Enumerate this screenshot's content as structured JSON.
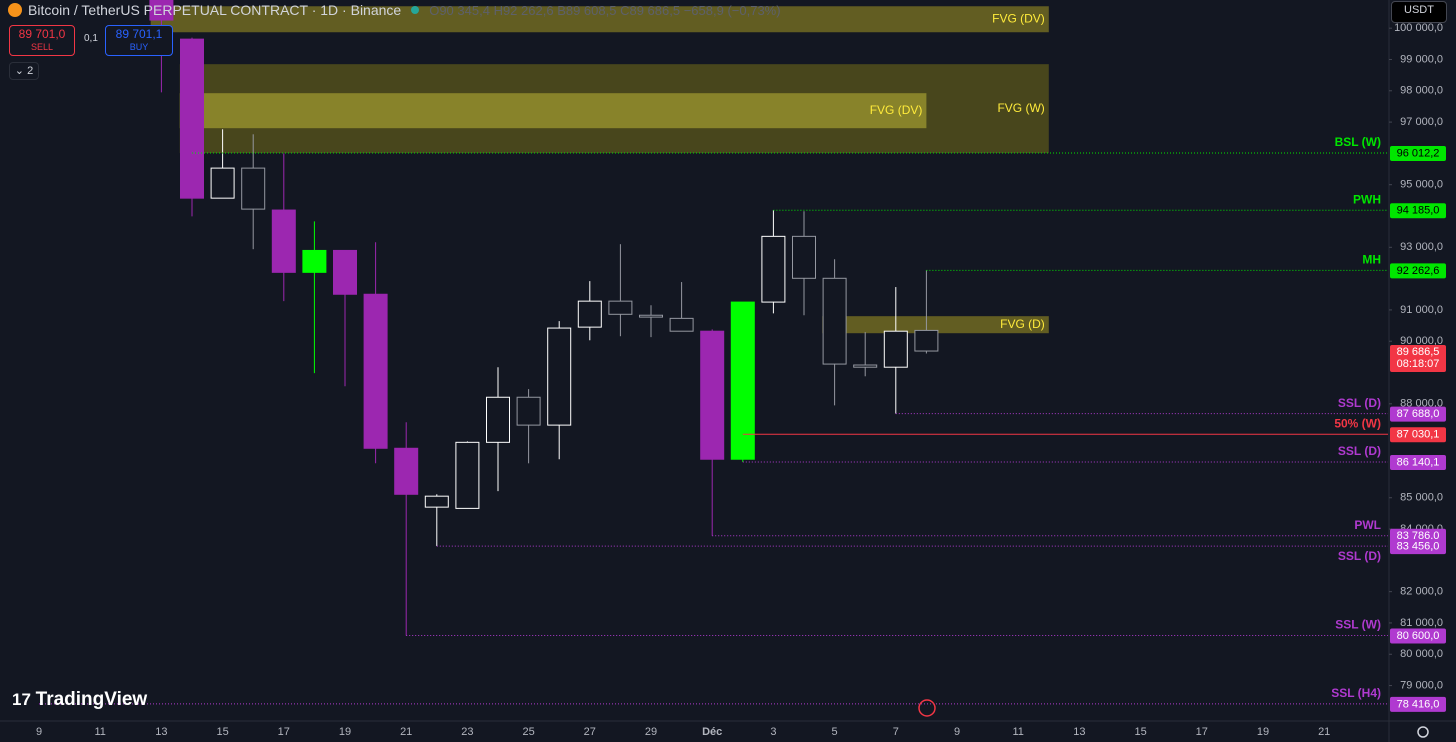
{
  "header": {
    "symbol": "Bitcoin / TetherUS PERPETUAL CONTRACT · 1D · Binance",
    "ohlc": [
      {
        "key": "O",
        "value": "90 345,4"
      },
      {
        "key": "H",
        "value": "92 262,6"
      },
      {
        "key": "B",
        "value": "89 608,5"
      },
      {
        "key": "C",
        "value": "89 686,5"
      }
    ],
    "change": "−658,9 (−0,73%)",
    "sell_price": "89 701,0",
    "sell": "SELL",
    "spread": "0,1",
    "buy_price": "89 701,1",
    "buy": "BUY",
    "indicators": "2",
    "currency": "USDT",
    "brand": "TradingView"
  },
  "chart_data": {
    "type": "candlestick",
    "categories": [
      "9",
      null,
      "11",
      null,
      "13",
      null,
      "15",
      null,
      "17",
      null,
      "19",
      null,
      "21",
      null,
      "23",
      null,
      "25",
      null,
      "27",
      null,
      "29",
      null,
      "Déc",
      null,
      "3",
      null,
      "5",
      null,
      "7",
      null,
      "9",
      null,
      "11",
      null,
      "13",
      null,
      "15",
      null,
      "17",
      null,
      "19",
      null,
      "21",
      null
    ],
    "open": [
      null,
      null,
      null,
      null,
      100900,
      99650,
      94570,
      95530,
      94190,
      92200,
      92900,
      91500,
      86580,
      84700,
      84660,
      86770,
      88210,
      87320,
      90450,
      91280,
      90830,
      90730,
      90320,
      86230,
      91250,
      93350,
      92010,
      89240,
      89170,
      90345.4,
      null,
      null,
      null,
      null,
      null,
      null,
      null,
      null,
      null,
      null,
      null,
      null,
      null,
      null
    ],
    "high": [
      null,
      null,
      null,
      null,
      100900,
      99700,
      96770,
      96610,
      96000,
      93830,
      92900,
      93160,
      87410,
      85110,
      86800,
      89170,
      88470,
      90640,
      91920,
      93100,
      91150,
      91890,
      90380,
      91250,
      94185,
      94150,
      92620,
      90290,
      91730,
      92262.6,
      null,
      null,
      null,
      null,
      null,
      null,
      null,
      null,
      null,
      null,
      null,
      null,
      null,
      null
    ],
    "low": [
      null,
      null,
      null,
      null,
      97950,
      93990,
      94570,
      92940,
      91280,
      88980,
      88560,
      86100,
      80600,
      83456,
      84660,
      85210,
      86100,
      86230,
      90030,
      90160,
      90130,
      90320,
      83786,
      86140,
      90890,
      90830,
      87950,
      88880,
      87688,
      89608.5,
      null,
      null,
      null,
      null,
      null,
      null,
      null,
      null,
      null,
      null,
      null,
      null,
      null,
      null
    ],
    "close": [
      null,
      null,
      null,
      null,
      100260,
      94570,
      95530,
      94220,
      92200,
      92900,
      91500,
      86580,
      85110,
      85050,
      86770,
      88210,
      87320,
      90420,
      91280,
      90860,
      90770,
      90320,
      86230,
      91250,
      93350,
      92010,
      89270,
      89170,
      90320,
      89686.5,
      null,
      null,
      null,
      null,
      null,
      null,
      null,
      null,
      null,
      null,
      null,
      null,
      null,
      null
    ],
    "colors": [
      null,
      null,
      null,
      null,
      "#9c27b0",
      "#9c27b0",
      "#ffffff",
      "#9598a1",
      "#9c27b0",
      "#00ff00",
      "#9c27b0",
      "#9c27b0",
      "#9c27b0",
      "#ffffff",
      "#ffffff",
      "#ffffff",
      "#9598a1",
      "#ffffff",
      "#ffffff",
      "#9598a1",
      "#9598a1",
      "#9598a1",
      "#9c27b0",
      "#00ff00",
      "#ffffff",
      "#9598a1",
      "#9598a1",
      "#9598a1",
      "#ffffff",
      "#9598a1",
      null,
      null,
      null,
      null,
      null,
      null,
      null,
      null,
      null,
      null,
      null,
      null,
      null,
      null
    ],
    "fills": [
      null,
      null,
      null,
      null,
      "#9c27b0",
      "#9c27b0",
      "#131722",
      "#131722",
      "#9c27b0",
      "#00ff00",
      "#9c27b0",
      "#9c27b0",
      "#9c27b0",
      "#131722",
      "#131722",
      "#131722",
      "#131722",
      "#131722",
      "#131722",
      "#131722",
      "#131722",
      "#131722",
      "#9c27b0",
      "#00ff00",
      "#131722",
      "#131722",
      "#131722",
      "#131722",
      "#131722",
      "#131722",
      null,
      null,
      null,
      null,
      null,
      null,
      null,
      null,
      null,
      null,
      null,
      null,
      null,
      null
    ],
    "ylim": [
      77900,
      100900
    ],
    "yticks": [
      {
        "value": 100000,
        "label": "100 000,0"
      },
      {
        "value": 99000,
        "label": "99 000,0"
      },
      {
        "value": 98000,
        "label": "98 000,0"
      },
      {
        "value": 97000,
        "label": "97 000,0"
      },
      {
        "value": 95000,
        "label": "95 000,0"
      },
      {
        "value": 93000,
        "label": "93 000,0"
      },
      {
        "value": 91000,
        "label": "91 000,0"
      },
      {
        "value": 90000,
        "label": "90 000,0"
      },
      {
        "value": 88000,
        "label": "88 000,0"
      },
      {
        "value": 85000,
        "label": "85 000,0"
      },
      {
        "value": 84000,
        "label": "84 000,0"
      },
      {
        "value": 82000,
        "label": "82 000,0"
      },
      {
        "value": 81000,
        "label": "81 000,0"
      },
      {
        "value": 80000,
        "label": "80 000,0"
      },
      {
        "value": 79000,
        "label": "79 000,0"
      }
    ],
    "zones": [
      {
        "label": "FVG (DV)",
        "low": 99870,
        "high": 100700,
        "from": 4,
        "to": 33,
        "color": "#6b6522"
      },
      {
        "label": "FVG (W)",
        "low": 96010,
        "high": 98850,
        "from": 5,
        "to": 33,
        "color": "#4f4b1c"
      },
      {
        "label": "FVG (DV)",
        "low": 96805,
        "high": 97923,
        "from": 5,
        "to": 29,
        "color": "#8f8a2c"
      },
      {
        "label": "FVG (D)",
        "low": 90256,
        "high": 90800,
        "from": 26,
        "to": 33,
        "color": "#6b6522"
      }
    ],
    "levels": [
      {
        "label": "BSL (W)",
        "value": 96012.2,
        "value_label": "96 012,2",
        "from": 5,
        "color": "#00e600",
        "box_text": "#000000",
        "line": "dotted",
        "label_position": "above"
      },
      {
        "label": "PWH",
        "value": 94185,
        "value_label": "94 185,0",
        "from": 24,
        "color": "#00e600",
        "box_text": "#000000",
        "line": "dotted",
        "label_position": "above"
      },
      {
        "label": "MH",
        "value": 92262.6,
        "value_label": "92 262,6",
        "from": 29,
        "color": "#00e600",
        "box_text": "#000000",
        "line": "dotted",
        "label_position": "above"
      },
      {
        "label": "SSL (D)",
        "value": 87688,
        "value_label": "87 688,0",
        "from": 28,
        "color": "#b03ad0",
        "box_text": "#ffffff",
        "line": "dotted",
        "label_position": "above"
      },
      {
        "label": "50% (W)",
        "value": 87030.1,
        "value_label": "87 030,1",
        "from": 23,
        "color": "#f23645",
        "box_text": "#ffffff",
        "line": "solid",
        "label_position": "above"
      },
      {
        "label": "SSL (D)",
        "value": 86140.1,
        "value_label": "86 140,1",
        "from": 23,
        "color": "#b03ad0",
        "box_text": "#ffffff",
        "line": "dotted",
        "label_position": "above"
      },
      {
        "label": "PWL",
        "value": 83786,
        "value_label": "83 786,0",
        "from": 22,
        "color": "#b03ad0",
        "box_text": "#ffffff",
        "line": "dotted",
        "label_position": "above"
      },
      {
        "label": "SSL (D)",
        "value": 83456,
        "value_label": "83 456,0",
        "from": 13,
        "color": "#b03ad0",
        "box_text": "#ffffff",
        "line": "dotted",
        "label_position": "below"
      },
      {
        "label": "SSL (W)",
        "value": 80600,
        "value_label": "80 600,0",
        "from": 12,
        "color": "#b03ad0",
        "box_text": "#ffffff",
        "line": "dotted",
        "label_position": "above"
      },
      {
        "label": "SSL (H4)",
        "value": 78416,
        "value_label": "78 416,0",
        "from": 0,
        "color": "#b03ad0",
        "box_text": "#ffffff",
        "line": "dotted",
        "label_position": "above"
      }
    ],
    "last_price": {
      "value": 89686.5,
      "label": "89 686,5",
      "timer": "08:18:07",
      "color": "#f23645"
    }
  }
}
